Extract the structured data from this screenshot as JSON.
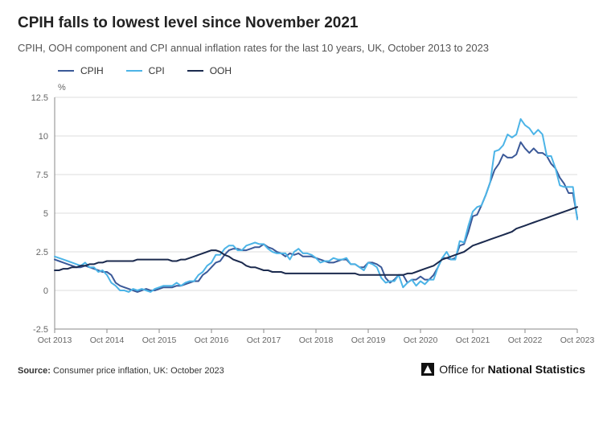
{
  "title": "CPIH falls to lowest level since November 2021",
  "subtitle": "CPIH, OOH component and CPI annual inflation rates for the last 10 years, UK, October 2013 to 2023",
  "unit_label": "%",
  "legend": {
    "items": [
      {
        "label": "CPIH",
        "color": "#3b5998"
      },
      {
        "label": "CPI",
        "color": "#4cb4e7"
      },
      {
        "label": "OOH",
        "color": "#1b2a4e"
      }
    ]
  },
  "chart": {
    "type": "line",
    "background_color": "#ffffff",
    "grid_color": "#dcdcdc",
    "axis_color": "#888888",
    "line_width": 2,
    "ylim": [
      -2.5,
      12.5
    ],
    "yticks": [
      -2.5,
      0,
      2.5,
      5,
      7.5,
      10,
      12.5
    ],
    "x_categories": [
      "Oct 2013",
      "Oct 2014",
      "Oct 2015",
      "Oct 2016",
      "Oct 2017",
      "Oct 2018",
      "Oct 2019",
      "Oct 2020",
      "Oct 2021",
      "Oct 2022",
      "Oct 2023"
    ],
    "x_count": 121,
    "series": [
      {
        "name": "CPIH",
        "color": "#3b5998",
        "values": [
          2.0,
          1.9,
          1.8,
          1.7,
          1.6,
          1.5,
          1.5,
          1.6,
          1.5,
          1.4,
          1.3,
          1.2,
          1.2,
          1.0,
          0.5,
          0.3,
          0.2,
          0.1,
          0.0,
          -0.1,
          0.0,
          0.1,
          0.0,
          0.0,
          0.1,
          0.2,
          0.2,
          0.2,
          0.3,
          0.3,
          0.4,
          0.5,
          0.6,
          0.6,
          1.0,
          1.2,
          1.5,
          1.8,
          1.9,
          2.3,
          2.6,
          2.7,
          2.7,
          2.6,
          2.6,
          2.7,
          2.8,
          2.8,
          3.0,
          2.8,
          2.7,
          2.5,
          2.4,
          2.2,
          2.4,
          2.3,
          2.4,
          2.2,
          2.2,
          2.2,
          2.1,
          2.0,
          1.9,
          1.8,
          1.8,
          1.9,
          2.0,
          2.0,
          1.7,
          1.7,
          1.5,
          1.5,
          1.8,
          1.8,
          1.7,
          1.5,
          0.8,
          0.5,
          0.7,
          1.0,
          1.0,
          0.5,
          0.7,
          0.7,
          0.9,
          0.7,
          0.7,
          1.0,
          1.5,
          2.1,
          2.1,
          2.0,
          2.1,
          2.9,
          3.0,
          3.8,
          4.8,
          4.9,
          5.5,
          6.2,
          7.0,
          7.8,
          8.2,
          8.8,
          8.6,
          8.6,
          8.8,
          9.6,
          9.2,
          8.9,
          9.2,
          8.9,
          8.9,
          8.7,
          8.2,
          7.9,
          7.3,
          6.9,
          6.3,
          6.3,
          4.7
        ]
      },
      {
        "name": "CPI",
        "color": "#4cb4e7",
        "values": [
          2.2,
          2.1,
          2.0,
          1.9,
          1.8,
          1.7,
          1.6,
          1.8,
          1.5,
          1.5,
          1.2,
          1.3,
          1.0,
          0.5,
          0.3,
          0.0,
          0.0,
          -0.1,
          0.1,
          0.0,
          0.1,
          0.0,
          -0.1,
          0.1,
          0.2,
          0.3,
          0.3,
          0.3,
          0.5,
          0.3,
          0.5,
          0.6,
          0.6,
          1.0,
          1.2,
          1.6,
          1.8,
          2.3,
          2.3,
          2.7,
          2.9,
          2.9,
          2.6,
          2.6,
          2.9,
          3.0,
          3.1,
          3.0,
          3.0,
          2.7,
          2.5,
          2.4,
          2.4,
          2.4,
          2.0,
          2.5,
          2.7,
          2.4,
          2.4,
          2.3,
          2.1,
          1.8,
          1.9,
          1.9,
          2.1,
          2.0,
          2.0,
          2.1,
          1.7,
          1.7,
          1.5,
          1.3,
          1.8,
          1.7,
          1.5,
          0.8,
          0.5,
          0.6,
          0.6,
          1.0,
          0.2,
          0.5,
          0.7,
          0.3,
          0.6,
          0.4,
          0.7,
          0.7,
          1.5,
          2.1,
          2.5,
          2.0,
          2.0,
          3.2,
          3.1,
          4.2,
          5.1,
          5.4,
          5.5,
          6.2,
          7.0,
          9.0,
          9.1,
          9.4,
          10.1,
          9.9,
          10.1,
          11.1,
          10.7,
          10.5,
          10.1,
          10.4,
          10.1,
          8.7,
          8.7,
          7.9,
          6.8,
          6.7,
          6.7,
          6.7,
          4.6
        ]
      },
      {
        "name": "OOH",
        "color": "#1b2a4e",
        "values": [
          1.3,
          1.3,
          1.4,
          1.4,
          1.5,
          1.5,
          1.6,
          1.6,
          1.7,
          1.7,
          1.8,
          1.8,
          1.9,
          1.9,
          1.9,
          1.9,
          1.9,
          1.9,
          1.9,
          2.0,
          2.0,
          2.0,
          2.0,
          2.0,
          2.0,
          2.0,
          2.0,
          1.9,
          1.9,
          2.0,
          2.0,
          2.1,
          2.2,
          2.3,
          2.4,
          2.5,
          2.6,
          2.6,
          2.5,
          2.3,
          2.2,
          2.0,
          1.9,
          1.8,
          1.6,
          1.5,
          1.5,
          1.4,
          1.3,
          1.3,
          1.2,
          1.2,
          1.2,
          1.1,
          1.1,
          1.1,
          1.1,
          1.1,
          1.1,
          1.1,
          1.1,
          1.1,
          1.1,
          1.1,
          1.1,
          1.1,
          1.1,
          1.1,
          1.1,
          1.1,
          1.0,
          1.0,
          1.0,
          1.0,
          1.0,
          1.0,
          1.0,
          1.0,
          1.0,
          1.0,
          1.0,
          1.1,
          1.1,
          1.2,
          1.3,
          1.4,
          1.5,
          1.6,
          1.8,
          2.0,
          2.1,
          2.2,
          2.3,
          2.4,
          2.5,
          2.7,
          2.9,
          3.0,
          3.1,
          3.2,
          3.3,
          3.4,
          3.5,
          3.6,
          3.7,
          3.8,
          4.0,
          4.1,
          4.2,
          4.3,
          4.4,
          4.5,
          4.6,
          4.7,
          4.8,
          4.9,
          5.0,
          5.1,
          5.2,
          5.3,
          5.4
        ]
      }
    ]
  },
  "source": {
    "label": "Source:",
    "text": " Consumer price inflation, UK: October 2023"
  },
  "attribution": {
    "prefix": "Office for ",
    "strong": "National Statistics"
  }
}
